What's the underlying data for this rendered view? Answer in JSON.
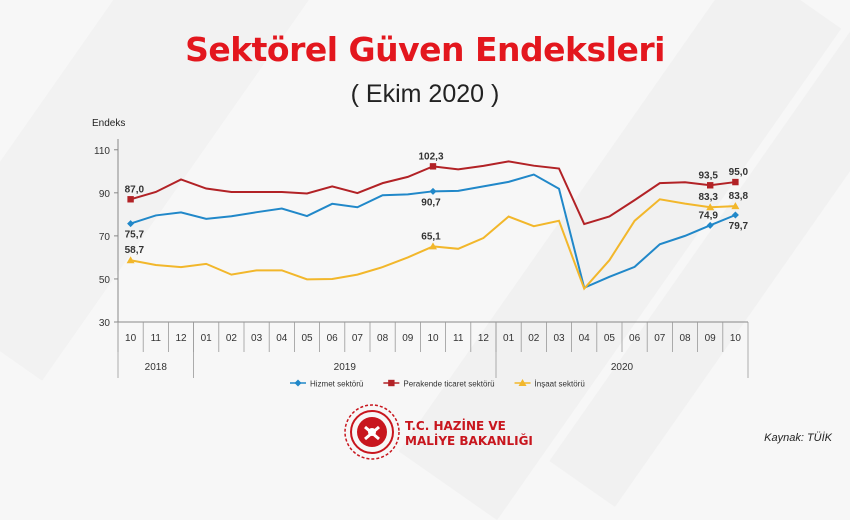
{
  "title": "Sektörel Güven Endeksleri",
  "subtitle": "( Ekim 2020 )",
  "source": "Kaynak: TÜİK",
  "organization": {
    "line1": "T.C. HAZİNE VE",
    "line2": "MALİYE BAKANLIĞI"
  },
  "colors": {
    "title": "#e3171e",
    "hizmet": "#2188c9",
    "perakende": "#b22226",
    "insaat": "#f2b72b"
  },
  "chart_data": {
    "type": "line",
    "ylabel": "Endeks",
    "ylim": [
      30,
      115
    ],
    "yticks": [
      30,
      50,
      70,
      90,
      110
    ],
    "grid": false,
    "legend_position": "bottom",
    "months": [
      "10",
      "11",
      "12",
      "01",
      "02",
      "03",
      "04",
      "05",
      "06",
      "07",
      "08",
      "09",
      "10",
      "11",
      "12",
      "01",
      "02",
      "03",
      "04",
      "05",
      "06",
      "07",
      "08",
      "09",
      "10"
    ],
    "years": [
      {
        "label": "2018",
        "start": 0,
        "end": 2
      },
      {
        "label": "2019",
        "start": 3,
        "end": 14
      },
      {
        "label": "2020",
        "start": 15,
        "end": 24
      }
    ],
    "series": [
      {
        "name": "Hizmet sektörü",
        "color": "#2188c9",
        "marker": "diamond",
        "values": [
          75.7,
          79.5,
          80.9,
          77.9,
          79.1,
          81.0,
          82.7,
          79.2,
          84.9,
          83.3,
          88.9,
          89.3,
          90.7,
          90.9,
          93.0,
          95.1,
          98.5,
          91.9,
          45.9,
          51.0,
          55.6,
          66.1,
          70.0,
          74.9,
          79.7
        ]
      },
      {
        "name": "Perakende ticaret sektörü",
        "color": "#b22226",
        "marker": "square",
        "values": [
          87.0,
          90.4,
          96.2,
          92.0,
          90.4,
          90.4,
          90.4,
          89.7,
          93.0,
          89.9,
          94.5,
          97.4,
          102.3,
          100.9,
          102.5,
          104.6,
          102.6,
          101.3,
          75.5,
          79.0,
          86.6,
          94.5,
          94.9,
          93.5,
          95.0
        ]
      },
      {
        "name": "İnşaat sektörü",
        "color": "#f2b72b",
        "marker": "triangle",
        "values": [
          58.7,
          56.5,
          55.5,
          57.0,
          52.0,
          54.0,
          54.0,
          49.8,
          50.0,
          52.0,
          55.5,
          60.0,
          65.1,
          64.0,
          69.0,
          79.0,
          74.5,
          77.0,
          45.5,
          58.7,
          77.0,
          87.0,
          85.0,
          83.3,
          83.8
        ]
      }
    ],
    "data_labels": [
      {
        "series": 0,
        "index": 0,
        "text": "75,7"
      },
      {
        "series": 0,
        "index": 12,
        "text": "90,7"
      },
      {
        "series": 0,
        "index": 23,
        "text": "74,9"
      },
      {
        "series": 0,
        "index": 24,
        "text": "79,7"
      },
      {
        "series": 1,
        "index": 0,
        "text": "87,0"
      },
      {
        "series": 1,
        "index": 12,
        "text": "102,3"
      },
      {
        "series": 1,
        "index": 23,
        "text": "93,5"
      },
      {
        "series": 1,
        "index": 24,
        "text": "95,0"
      },
      {
        "series": 2,
        "index": 0,
        "text": "58,7"
      },
      {
        "series": 2,
        "index": 12,
        "text": "65,1"
      },
      {
        "series": 2,
        "index": 23,
        "text": "83,3"
      },
      {
        "series": 2,
        "index": 24,
        "text": "83,8"
      }
    ]
  }
}
